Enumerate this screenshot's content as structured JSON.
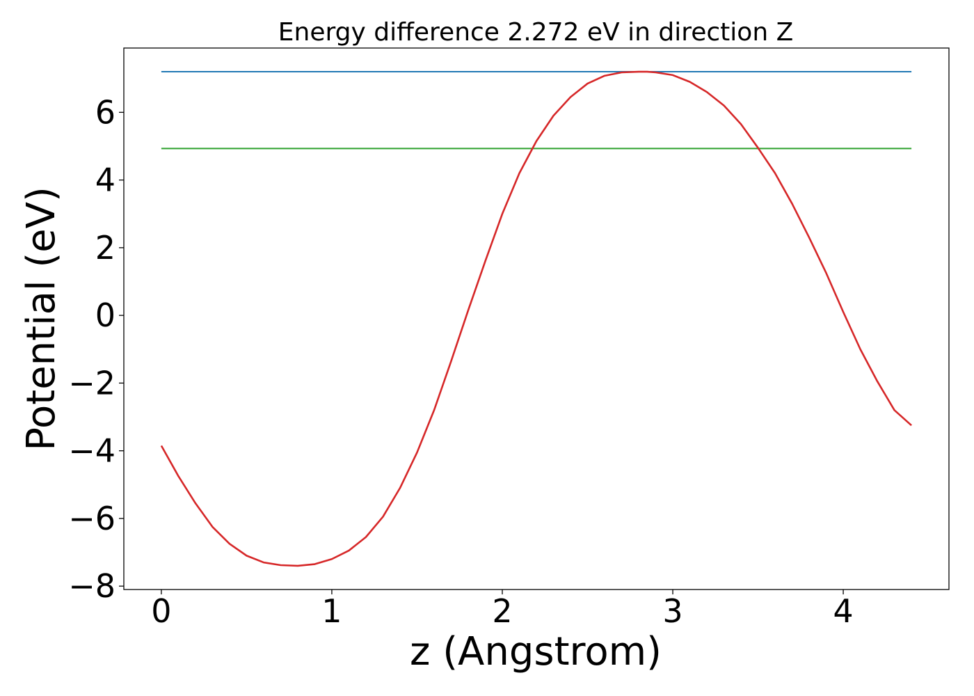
{
  "chart_data": {
    "type": "line",
    "title": "Energy difference 2.272 eV in direction Z",
    "xlabel": "z (Angstrom)",
    "ylabel": "Potential (eV)",
    "xlim": [
      -0.22,
      4.62
    ],
    "ylim": [
      -8.1,
      7.9
    ],
    "xticks": [
      0,
      1,
      2,
      3,
      4
    ],
    "xtick_labels": [
      "0",
      "1",
      "2",
      "3",
      "4"
    ],
    "yticks": [
      -8,
      -6,
      -4,
      -2,
      0,
      2,
      4,
      6
    ],
    "ytick_labels": [
      "−8",
      "−6",
      "−4",
      "−2",
      "0",
      "2",
      "4",
      "6"
    ],
    "grid": false,
    "series": [
      {
        "color": "#1f77b4",
        "style": "horizontal",
        "x": [
          0,
          4.4
        ],
        "y": [
          7.2,
          7.2
        ]
      },
      {
        "color": "#2ca02c",
        "style": "horizontal",
        "x": [
          0,
          4.4
        ],
        "y": [
          4.93,
          4.93
        ]
      },
      {
        "color": "#d62728",
        "style": "curve",
        "x": [
          0,
          0.1,
          0.2,
          0.3,
          0.4,
          0.5,
          0.6,
          0.7,
          0.8,
          0.9,
          1.0,
          1.1,
          1.2,
          1.3,
          1.4,
          1.5,
          1.6,
          1.7,
          1.8,
          1.9,
          2.0,
          2.1,
          2.2,
          2.3,
          2.4,
          2.5,
          2.6,
          2.7,
          2.8,
          2.85,
          2.9,
          3.0,
          3.1,
          3.2,
          3.3,
          3.4,
          3.5,
          3.6,
          3.7,
          3.8,
          3.9,
          4.0,
          4.1,
          4.2,
          4.3,
          4.4
        ],
        "y": [
          -3.85,
          -4.75,
          -5.55,
          -6.25,
          -6.75,
          -7.1,
          -7.3,
          -7.38,
          -7.4,
          -7.35,
          -7.2,
          -6.95,
          -6.55,
          -5.95,
          -5.1,
          -4.05,
          -2.8,
          -1.35,
          0.15,
          1.6,
          3.0,
          4.2,
          5.15,
          5.9,
          6.45,
          6.85,
          7.08,
          7.18,
          7.2,
          7.2,
          7.18,
          7.1,
          6.9,
          6.6,
          6.2,
          5.65,
          4.95,
          4.2,
          3.3,
          2.3,
          1.25,
          0.1,
          -1.0,
          -1.95,
          -2.8,
          -3.25
        ]
      }
    ]
  }
}
